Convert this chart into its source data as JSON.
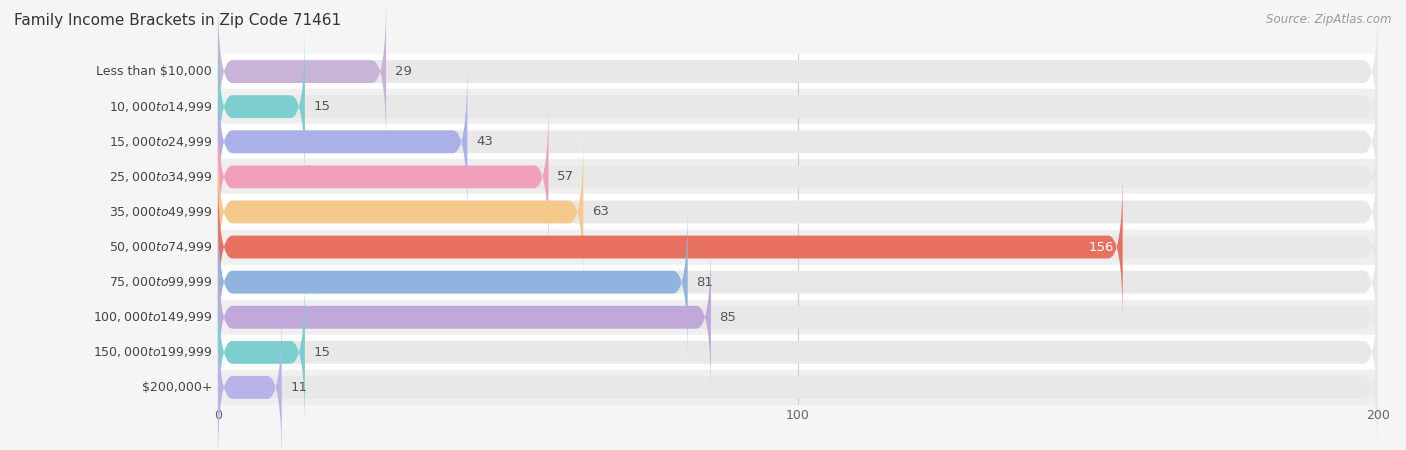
{
  "title": "Family Income Brackets in Zip Code 71461",
  "source": "Source: ZipAtlas.com",
  "categories": [
    "Less than $10,000",
    "$10,000 to $14,999",
    "$15,000 to $24,999",
    "$25,000 to $34,999",
    "$35,000 to $49,999",
    "$50,000 to $74,999",
    "$75,000 to $99,999",
    "$100,000 to $149,999",
    "$150,000 to $199,999",
    "$200,000+"
  ],
  "values": [
    29,
    15,
    43,
    57,
    63,
    156,
    81,
    85,
    15,
    11
  ],
  "bar_colors": [
    "#c8b4d8",
    "#7dcece",
    "#aab0e8",
    "#f0a0bc",
    "#f5c88c",
    "#e87060",
    "#90b4e0",
    "#c0a8d8",
    "#7dcece",
    "#b8b4e8"
  ],
  "xlim": [
    0,
    200
  ],
  "xticks": [
    0,
    100,
    200
  ],
  "bg_color": "#f5f5f5",
  "row_colors": [
    "#ffffff",
    "#efefef"
  ],
  "bar_bg_color": "#e8e8e8",
  "title_fontsize": 11,
  "source_fontsize": 8.5,
  "value_fontsize": 9.5,
  "cat_fontsize": 9,
  "bar_height": 0.65,
  "grid_color": "#cccccc",
  "value_inside_color": "white",
  "value_outside_color": "#555555",
  "inside_threshold": 140
}
